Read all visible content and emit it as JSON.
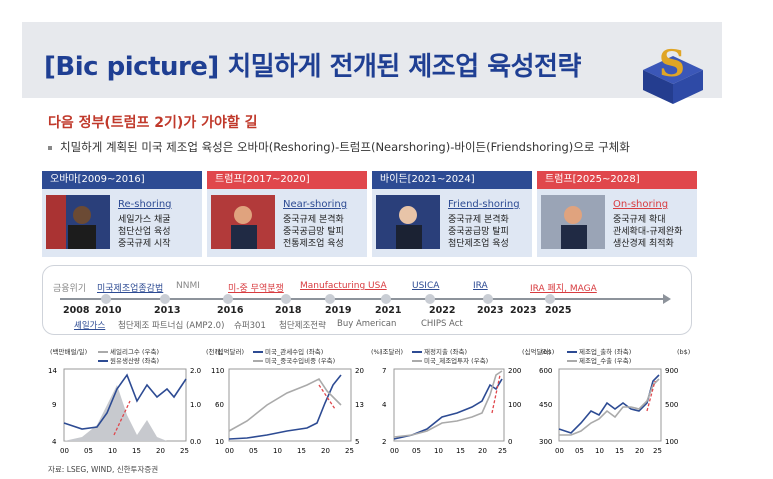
{
  "title": "[Bic picture] 치밀하게 전개된 제조업 육성전략",
  "subhead": "다음 정부(트럼프 2기)가 가야할 길",
  "bullet": "치밀하게 계획된 미국 제조업 육성은 오바마(Reshoring)-트럼프(Nearshoring)-바이든(Friendshoring)으로 구체화",
  "colors": {
    "navy": "#2d4b93",
    "red": "#e0474c",
    "title": "#1f3f93"
  },
  "cards": [
    {
      "header": "오바마[2009~2016]",
      "color": "navy",
      "keyword": "Re-shoring",
      "lines": [
        "세일가스 채굴",
        "첨단산업 육성",
        "중국규제 시작"
      ]
    },
    {
      "header": "트럼프[2017~2020]",
      "color": "red",
      "keyword": "Near-shoring",
      "lines": [
        "중국규제 본격화",
        "중국공급망 탈피",
        "전통제조업 육성"
      ]
    },
    {
      "header": "바이든[2021~2024]",
      "color": "navy",
      "keyword": "Friend-shoring",
      "lines": [
        "중국규제 본격화",
        "중국공급망 탈피",
        "첨단제조업 육성"
      ]
    },
    {
      "header": "트럼프[2025~2028]",
      "color": "red",
      "keyword": "On-shoring",
      "lines": [
        "중국규제 확대",
        "관세확대-규제완화",
        "생산경제 최적화"
      ]
    }
  ],
  "timeline": {
    "years": [
      "2008",
      "2010",
      "2013",
      "2016",
      "2018",
      "2019",
      "2021",
      "2022",
      "2023",
      "2023",
      "2025"
    ],
    "top": [
      "금융위기",
      "미국제조업종감법",
      "NNMI",
      "미-중 무역분쟁",
      "Manufacturing USA",
      "USICA",
      "IRA",
      "IRA 폐지, MAGA"
    ],
    "bottom": [
      "셰일가스",
      "첨단제조 파트너십 (AMP2.0)",
      "슈퍼301",
      "첨단제조전략",
      "Buy American",
      "CHIPS Act"
    ]
  },
  "charts": [
    {
      "units_left": "(백만배럴/일)",
      "units_right": "(천개)",
      "legend": [
        "셰일리그수 (우축)",
        "원유생산량 (좌축)"
      ],
      "yleft": [
        "14",
        "9",
        "4"
      ],
      "yright": [
        "2.0",
        "1.0",
        "0.0"
      ],
      "x": [
        "00",
        "05",
        "10",
        "15",
        "20",
        "25"
      ]
    },
    {
      "units_left": "(십억달러)",
      "units_right": "(%)",
      "legend": [
        "미국_관세수입 (좌축)",
        "미국_중국수입비중 (우축)"
      ],
      "yleft": [
        "110",
        "60",
        "10"
      ],
      "yright": [
        "20",
        "13",
        "5"
      ],
      "x": [
        "00",
        "05",
        "10",
        "15",
        "20",
        "25"
      ]
    },
    {
      "units_left": "(조달러)",
      "units_right": "(십억달러)",
      "legend": [
        "재정지출 (좌축)",
        "미국_제조업투자 (우축)"
      ],
      "yleft": [
        "7",
        "4",
        "2"
      ],
      "yright": [
        "200",
        "100",
        "0"
      ],
      "x": [
        "00",
        "05",
        "10",
        "15",
        "20",
        "25"
      ]
    },
    {
      "units_left": "(b$)",
      "units_right": "(b$)",
      "legend": [
        "제조업_출하 (좌축)",
        "제조업_수출 (우축)"
      ],
      "yleft": [
        "600",
        "450",
        "300"
      ],
      "yright": [
        "900",
        "500",
        "100"
      ],
      "x": [
        "00",
        "05",
        "10",
        "15",
        "20",
        "25"
      ]
    }
  ],
  "source": "자료: LSEG, WIND, 신한투자증권"
}
